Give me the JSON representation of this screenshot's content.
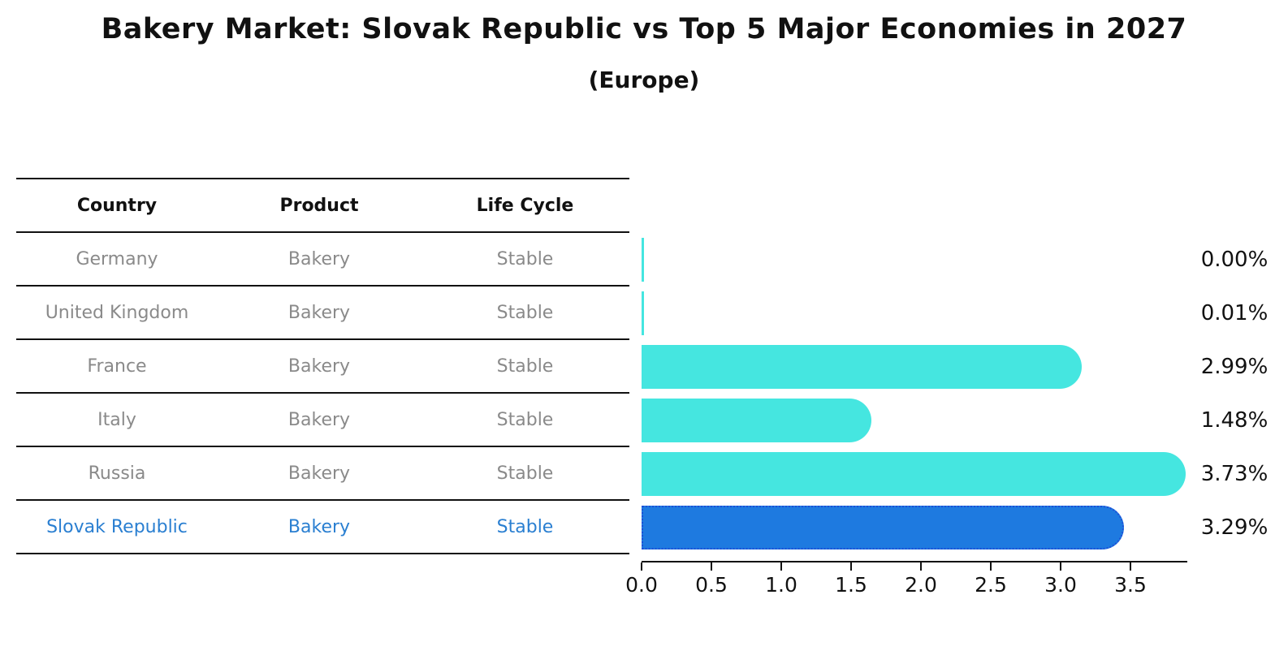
{
  "title": "Bakery Market: Slovak Republic vs Top 5 Major Economies in 2027",
  "subtitle": "(Europe)",
  "table": {
    "headers": {
      "country": "Country",
      "product": "Product",
      "life_cycle": "Life Cycle"
    },
    "rows": [
      {
        "country": "Germany",
        "product": "Bakery",
        "life_cycle": "Stable",
        "highlight": false
      },
      {
        "country": "United Kingdom",
        "product": "Bakery",
        "life_cycle": "Stable",
        "highlight": false
      },
      {
        "country": "France",
        "product": "Bakery",
        "life_cycle": "Stable",
        "highlight": false
      },
      {
        "country": "Italy",
        "product": "Bakery",
        "life_cycle": "Stable",
        "highlight": false
      },
      {
        "country": "Russia",
        "product": "Bakery",
        "life_cycle": "Stable",
        "highlight": false
      },
      {
        "country": "Slovak Republic",
        "product": "Bakery",
        "life_cycle": "Stable",
        "highlight": true
      }
    ]
  },
  "chart_data": {
    "type": "bar",
    "orientation": "horizontal",
    "title": "Bakery Market: Slovak Republic vs Top 5 Major Economies in 2027",
    "subtitle": "(Europe)",
    "categories": [
      "Germany",
      "United Kingdom",
      "France",
      "Italy",
      "Russia",
      "Slovak Republic"
    ],
    "values": [
      0.0,
      0.01,
      2.99,
      1.48,
      3.73,
      3.29
    ],
    "value_labels": [
      "0.00%",
      "0.01%",
      "2.99%",
      "1.48%",
      "3.73%",
      "3.29%"
    ],
    "x_tick_labels": [
      "0.0",
      "0.5",
      "1.0",
      "1.5",
      "2.0",
      "2.5",
      "3.0",
      "3.5"
    ],
    "x_tick_values": [
      0.0,
      0.5,
      1.0,
      1.5,
      2.0,
      2.5,
      3.0,
      3.5
    ],
    "xlim": [
      0.0,
      3.9
    ],
    "grid": false,
    "legend": "none",
    "highlight_category": "Slovak Republic",
    "bar_color": "#45e6e0",
    "highlight_bar_color": "#1e7ae0",
    "highlight_border_color": "#1d4fd8",
    "highlight_text_color": "#2a7fd1",
    "row_text_color": "#8a8a8a"
  }
}
